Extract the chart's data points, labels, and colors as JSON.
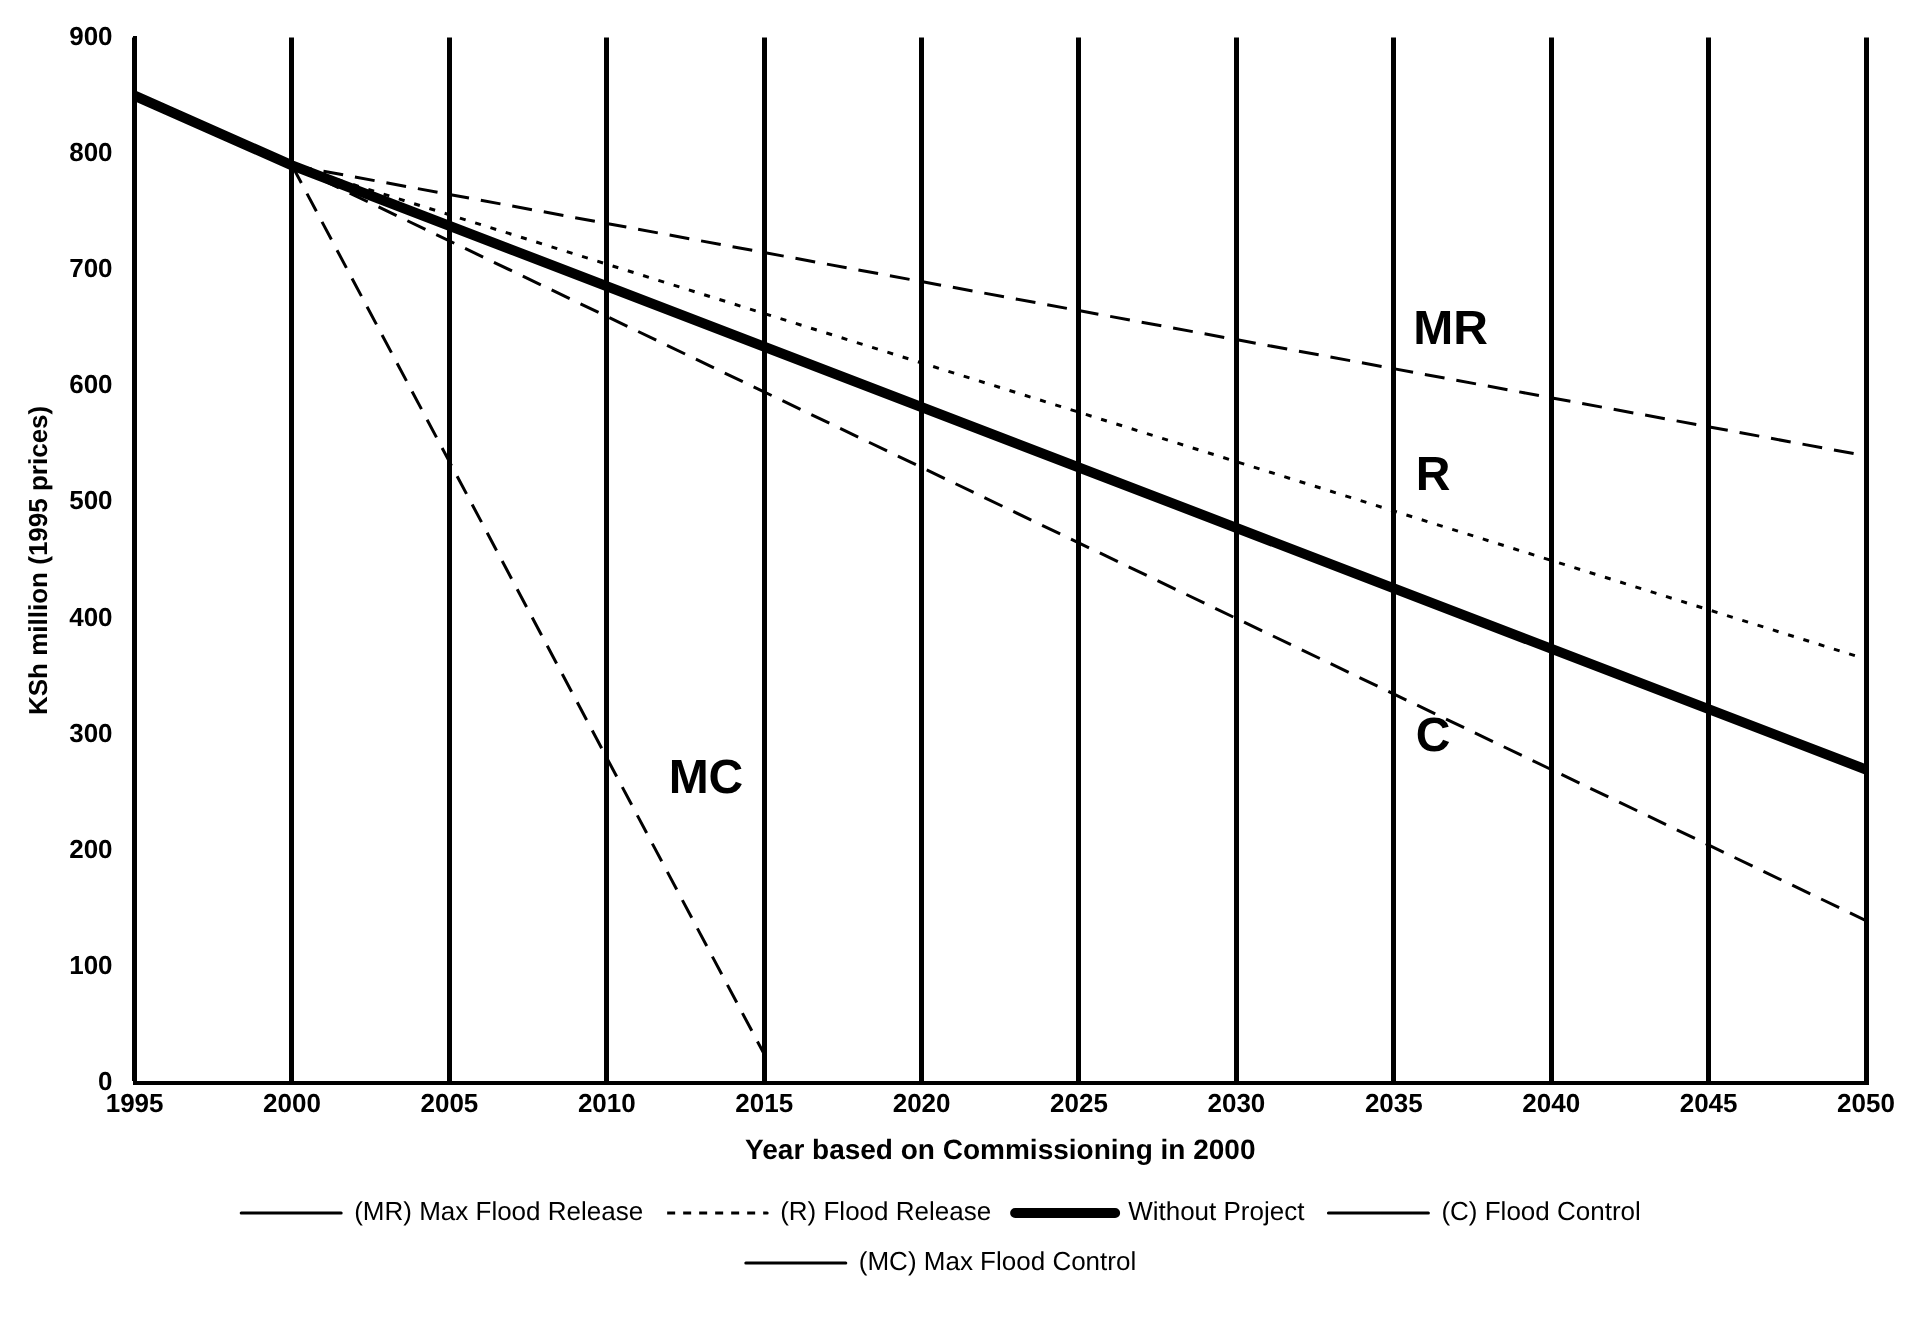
{
  "chart_data": {
    "type": "line",
    "xlabel": "Year based on Commissioning in 2000",
    "ylabel": "KSh million (1995 prices)",
    "xlim": [
      1995,
      2050
    ],
    "xticks": [
      1995,
      2000,
      2005,
      2010,
      2015,
      2020,
      2025,
      2030,
      2035,
      2040,
      2045,
      2050
    ],
    "ylim": [
      0,
      900
    ],
    "yticks": [
      0,
      100,
      200,
      300,
      400,
      500,
      600,
      700,
      800,
      900
    ],
    "grid": "x",
    "legend": "bottom",
    "marker": "none",
    "series": [
      {
        "name": "(MR) Max Flood Release",
        "color": "#000000",
        "line_style": "dashed",
        "x": [
          2000,
          2050
        ],
        "values": [
          790,
          540
        ]
      },
      {
        "name": "(R) Flood Release",
        "color": "#000000",
        "line_style": "dotted",
        "x": [
          2000,
          2050
        ],
        "values": [
          790,
          365
        ]
      },
      {
        "name": "Without Project",
        "color": "#000000",
        "line_style": "solid",
        "x": [
          1995,
          2000,
          2050
        ],
        "values": [
          850,
          790,
          270
        ]
      },
      {
        "name": "(C) Flood Control",
        "color": "#000000",
        "line_style": "dashed",
        "x": [
          2000,
          2050
        ],
        "values": [
          790,
          140
        ]
      },
      {
        "name": "(MC) Max Flood Control",
        "color": "#000000",
        "line_style": "dashed",
        "x": [
          2000,
          2015
        ],
        "values": [
          790,
          25
        ]
      }
    ],
    "annotations": [
      "MR",
      "R",
      "C",
      "MC"
    ]
  }
}
